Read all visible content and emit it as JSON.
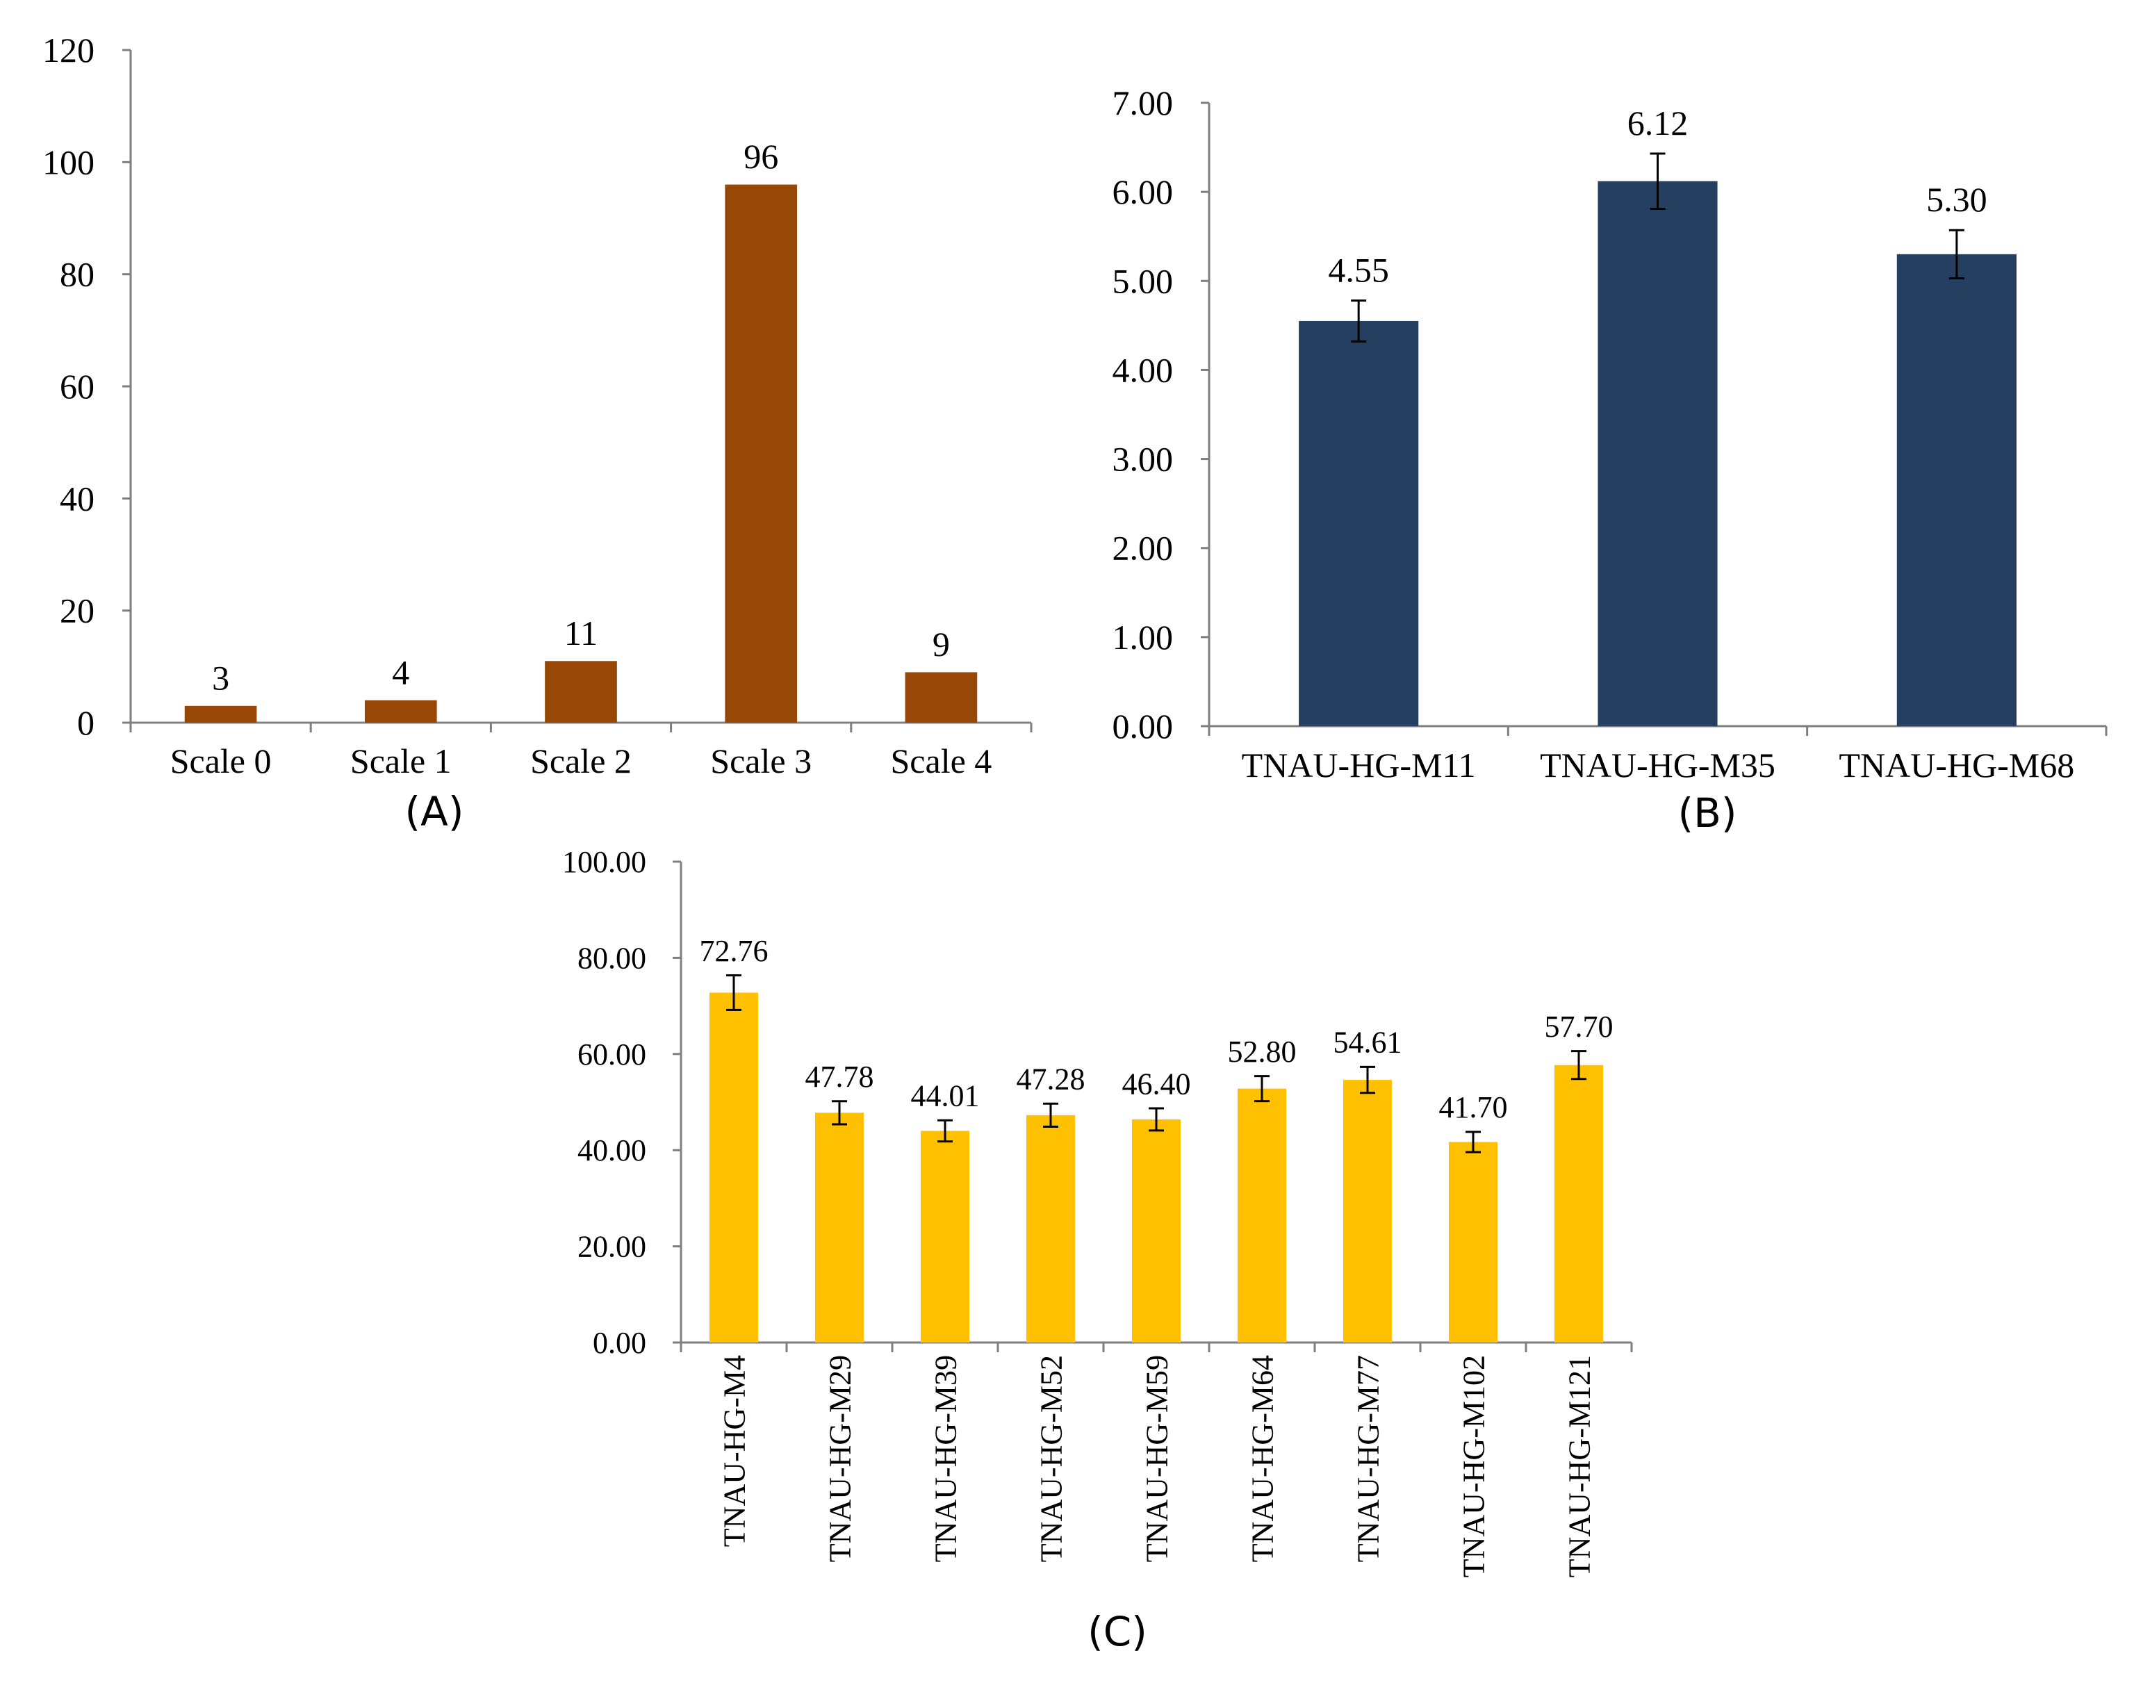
{
  "figure": {
    "panels": [
      "(A)",
      "(B)",
      "(C)"
    ]
  },
  "chart_data": [
    {
      "id": "A",
      "panel_label": "(A)",
      "type": "bar",
      "title": "",
      "xlabel": "",
      "ylabel": "",
      "categories": [
        "Scale 0",
        "Scale 1",
        "Scale 2",
        "Scale 3",
        "Scale 4"
      ],
      "values": [
        3,
        4,
        11,
        96,
        9
      ],
      "data_labels": [
        "3",
        "4",
        "11",
        "96",
        "9"
      ],
      "ylim": [
        0,
        120
      ],
      "yticks": [
        "0",
        "20",
        "40",
        "60",
        "80",
        "100",
        "120"
      ],
      "error_bars": null,
      "grid": false,
      "color": "#974706"
    },
    {
      "id": "B",
      "panel_label": "(B)",
      "type": "bar",
      "title": "",
      "xlabel": "",
      "ylabel": "",
      "categories": [
        "TNAU-HG-M11",
        "TNAU-HG-M35",
        "TNAU-HG-M68"
      ],
      "values": [
        4.55,
        6.12,
        5.3
      ],
      "data_labels": [
        "4.55",
        "6.12",
        "5.30"
      ],
      "errors": [
        0.23,
        0.31,
        0.27
      ],
      "ylim": [
        0,
        7
      ],
      "yticks": [
        "0.00",
        "1.00",
        "2.00",
        "3.00",
        "4.00",
        "5.00",
        "6.00",
        "7.00"
      ],
      "grid": false,
      "color": "#243F60"
    },
    {
      "id": "C",
      "panel_label": "(C)",
      "type": "bar",
      "title": "",
      "xlabel": "",
      "ylabel": "",
      "categories": [
        "TNAU-HG-M4",
        "TNAU-HG-M29",
        "TNAU-HG-M39",
        "TNAU-HG-M52",
        "TNAU-HG-M59",
        "TNAU-HG-M64",
        "TNAU-HG-M77",
        "TNAU-HG-M102",
        "TNAU-HG-M121"
      ],
      "values": [
        72.76,
        47.78,
        44.01,
        47.28,
        46.4,
        52.8,
        54.61,
        41.7,
        57.7
      ],
      "data_labels": [
        "72.76",
        "47.78",
        "44.01",
        "47.28",
        "46.40",
        "52.80",
        "54.61",
        "41.70",
        "57.70"
      ],
      "errors": [
        3.6,
        2.4,
        2.2,
        2.4,
        2.3,
        2.6,
        2.7,
        2.1,
        2.9
      ],
      "ylim": [
        0,
        100
      ],
      "yticks": [
        "0.00",
        "20.00",
        "40.00",
        "60.00",
        "80.00",
        "100.00"
      ],
      "grid": false,
      "color": "#FFC000"
    }
  ]
}
